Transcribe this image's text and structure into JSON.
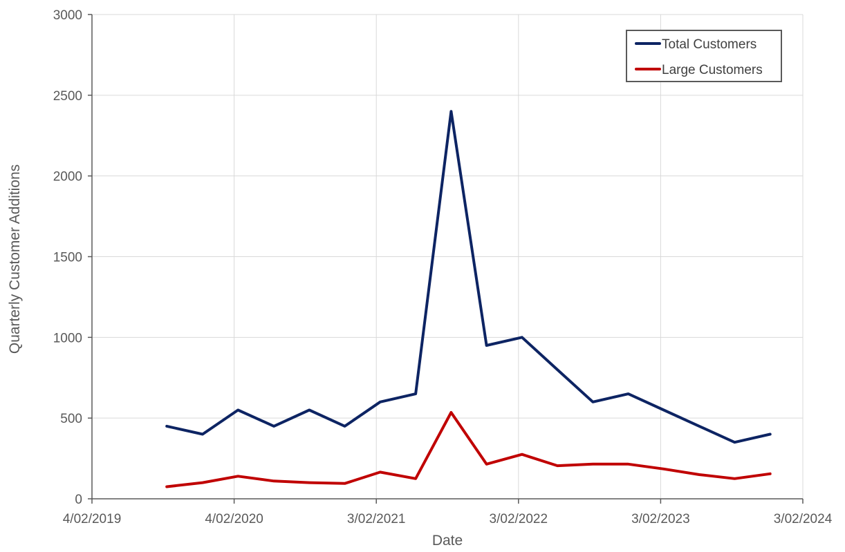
{
  "chart_data": {
    "type": "line",
    "xlabel": "Date",
    "ylabel": "Quarterly Customer Additions",
    "ylim": [
      0,
      3000
    ],
    "y_ticks": [
      0,
      500,
      1000,
      1500,
      2000,
      2500,
      3000
    ],
    "x_ticks": [
      "4/02/2019",
      "4/02/2020",
      "3/02/2021",
      "3/02/2022",
      "3/02/2023",
      "3/02/2024"
    ],
    "x_range": [
      "2019-02-04",
      "2024-02-03"
    ],
    "x": [
      "2019-08-15",
      "2019-11-15",
      "2020-02-14",
      "2020-05-16",
      "2020-08-15",
      "2020-11-14",
      "2021-02-13",
      "2021-05-15",
      "2021-08-14",
      "2021-11-13",
      "2022-02-12",
      "2022-05-14",
      "2022-08-13",
      "2022-11-12",
      "2023-02-11",
      "2023-05-13",
      "2023-08-12",
      "2023-11-11"
    ],
    "grid": true,
    "legend_position": "top-right",
    "series": [
      {
        "name": "Total Customers",
        "color": "#0d2463",
        "values": [
          450,
          400,
          550,
          450,
          550,
          450,
          600,
          650,
          2400,
          950,
          1000,
          800,
          600,
          650,
          550,
          450,
          350,
          400
        ]
      },
      {
        "name": "Large Customers",
        "color": "#c00000",
        "values": [
          75,
          100,
          140,
          110,
          100,
          95,
          165,
          125,
          535,
          215,
          275,
          205,
          215,
          215,
          185,
          150,
          125,
          155
        ]
      }
    ]
  }
}
